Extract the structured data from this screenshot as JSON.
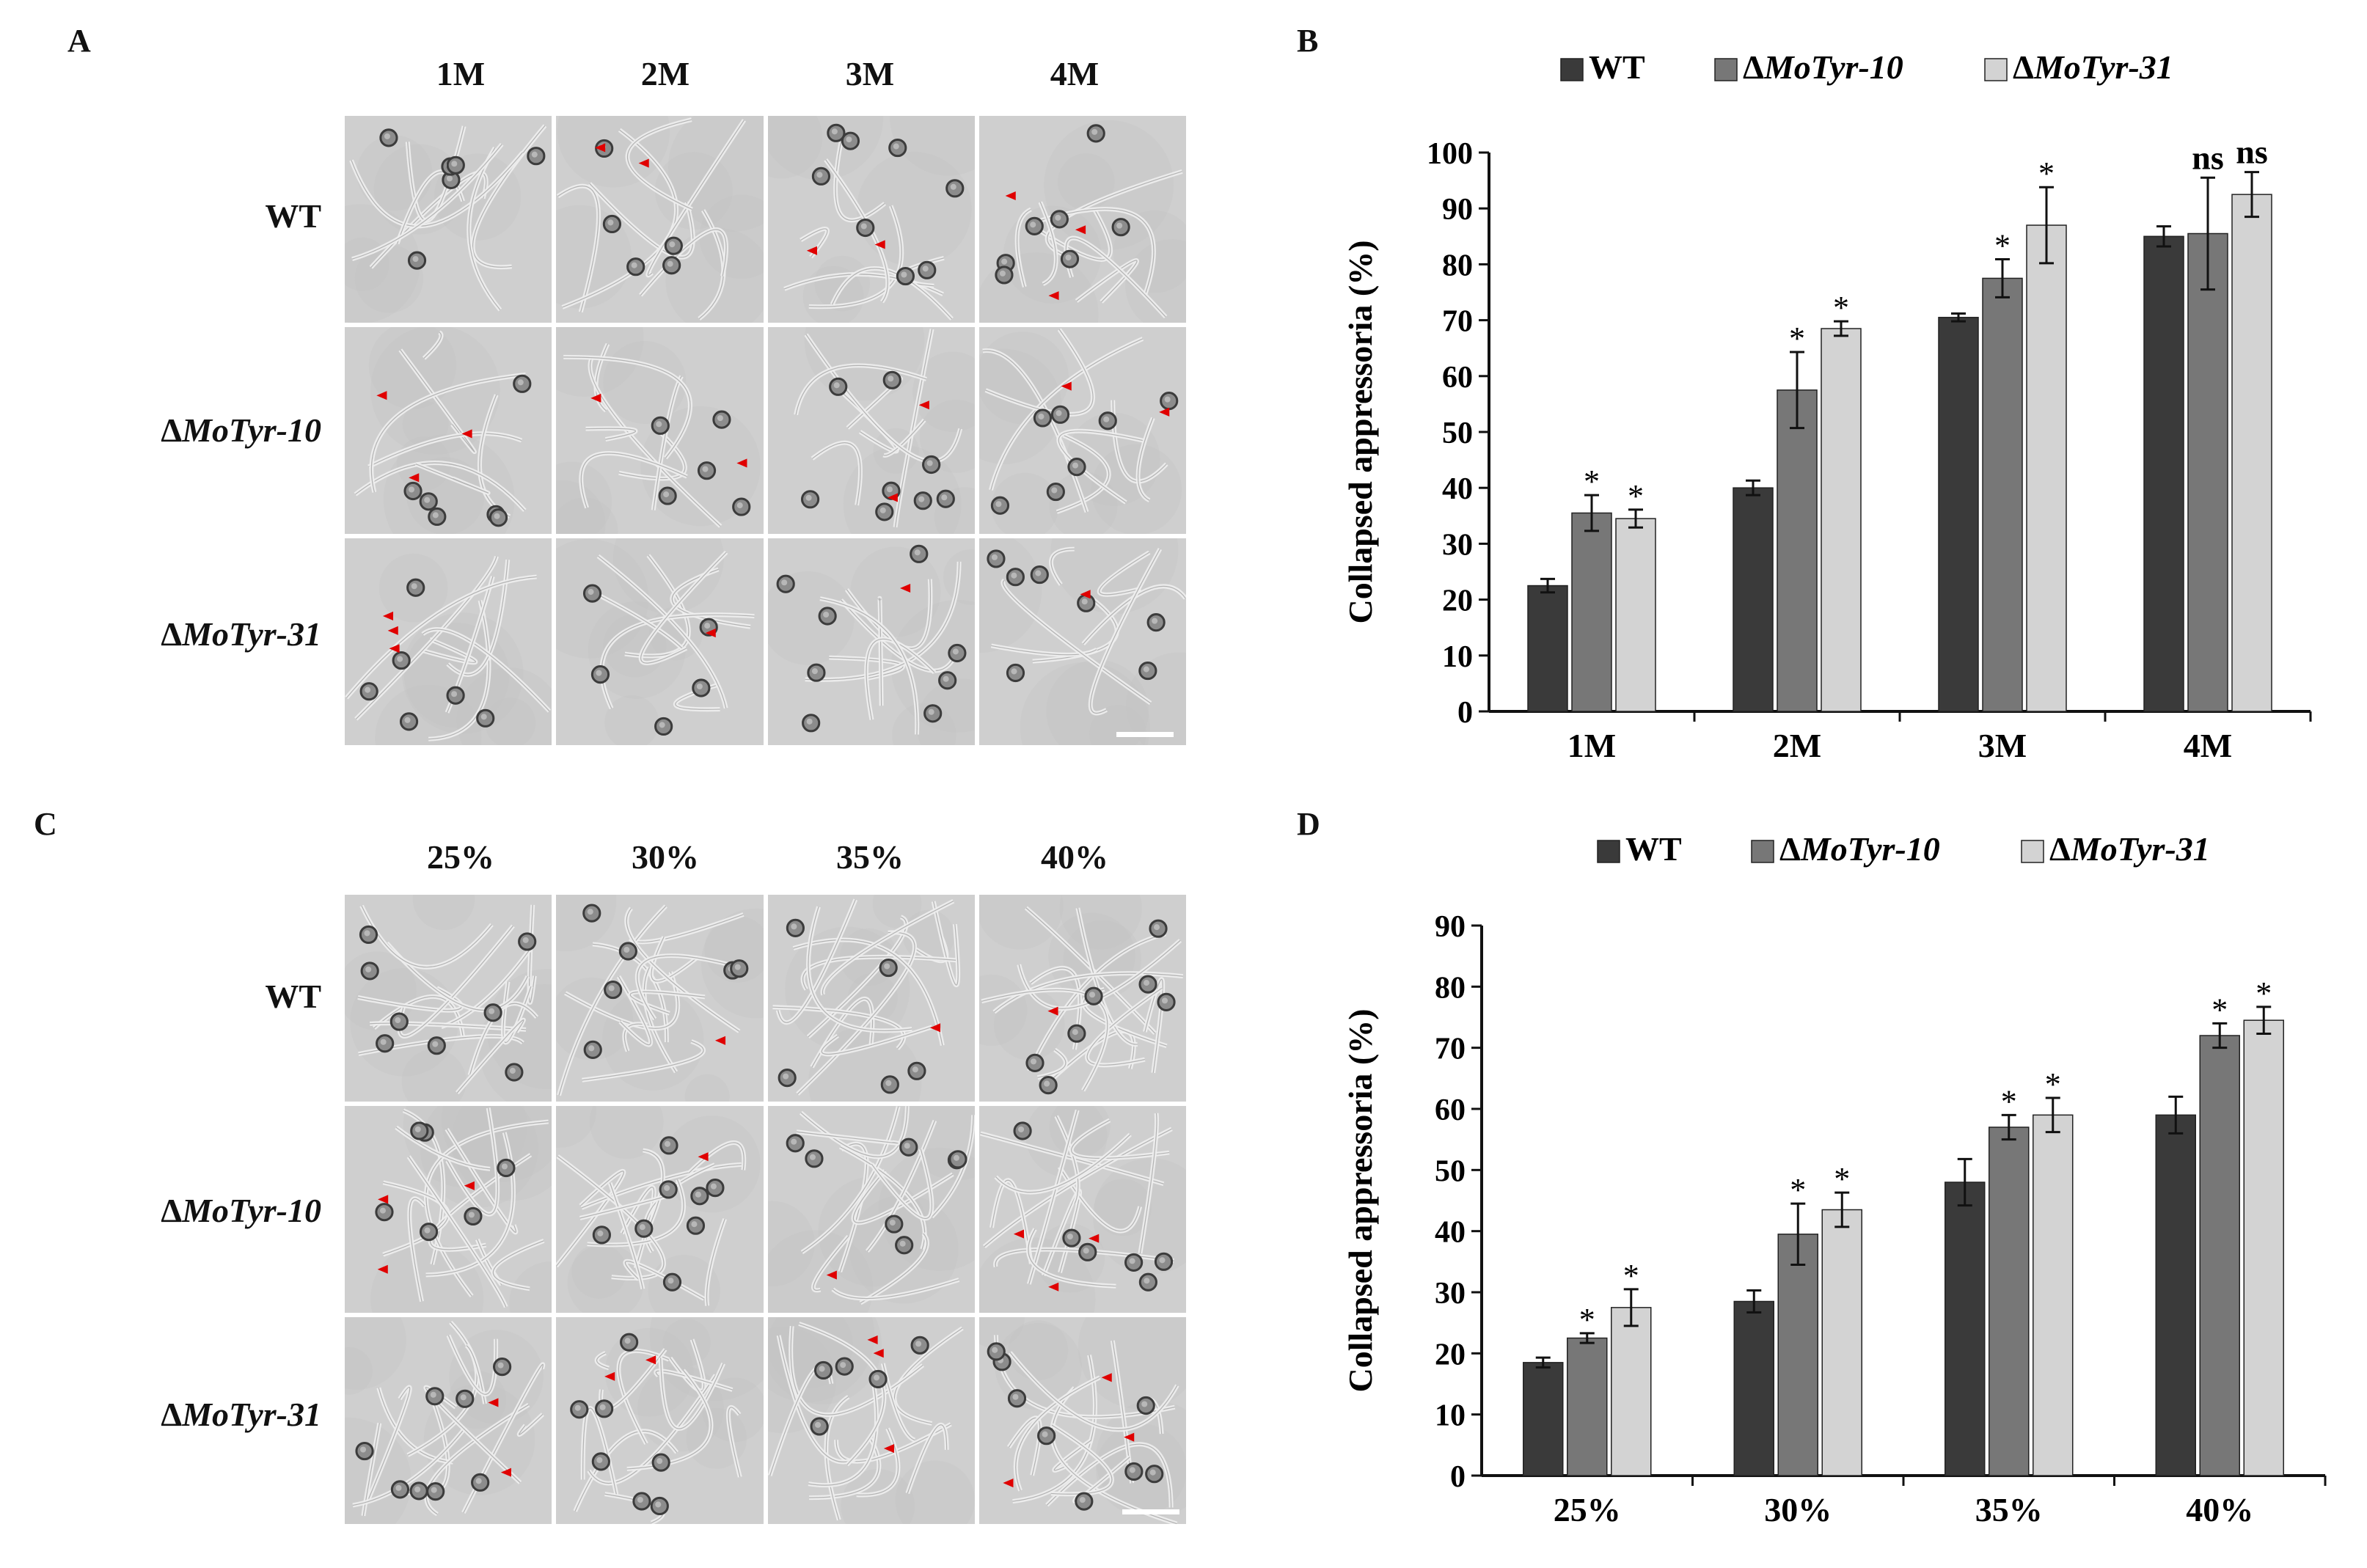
{
  "panels": {
    "A": {
      "letter": "A",
      "columns": [
        "1M",
        "2M",
        "3M",
        "4M"
      ],
      "rows": [
        {
          "prefix": "",
          "name": "WT",
          "italic": false
        },
        {
          "prefix": "Δ",
          "name": "MoTyr-10",
          "italic": true
        },
        {
          "prefix": "Δ",
          "name": "MoTyr-31",
          "italic": true
        }
      ]
    },
    "C": {
      "letter": "C",
      "columns": [
        "25%",
        "30%",
        "35%",
        "40%"
      ],
      "rows": [
        {
          "prefix": "",
          "name": "WT",
          "italic": false
        },
        {
          "prefix": "Δ",
          "name": "MoTyr-10",
          "italic": true
        },
        {
          "prefix": "Δ",
          "name": "MoTyr-31",
          "italic": true
        }
      ]
    },
    "B": {
      "letter": "B"
    },
    "D": {
      "letter": "D"
    }
  },
  "colors": {
    "wt": "#3a3a3a",
    "mutant10": "#777777",
    "mutant31": "#d3d3d3",
    "arrowhead": "#e00000",
    "tile_bg": "#cfcfcf"
  },
  "chart_data": [
    {
      "panel": "B",
      "type": "bar",
      "categories": [
        "1M",
        "2M",
        "3M",
        "4M"
      ],
      "ylabel": "Collapsed appressoria (%)",
      "ylim": [
        0,
        100
      ],
      "yticks": [
        0,
        10,
        20,
        30,
        40,
        50,
        60,
        70,
        80,
        90,
        100
      ],
      "legend_position": "top",
      "series": [
        {
          "prefix": "",
          "name": "WT",
          "italic": false,
          "values": [
            22.5,
            40,
            70.5,
            85
          ],
          "errors": [
            1.2,
            1.3,
            0.7,
            1.8
          ],
          "marks": [
            "",
            "",
            "",
            ""
          ]
        },
        {
          "prefix": "Δ",
          "name": "MoTyr-10",
          "italic": true,
          "values": [
            35.5,
            57.5,
            77.5,
            85.5
          ],
          "errors": [
            3.2,
            6.8,
            3.4,
            10
          ],
          "marks": [
            "*",
            "*",
            "*",
            "ns"
          ]
        },
        {
          "prefix": "Δ",
          "name": "MoTyr-31",
          "italic": true,
          "values": [
            34.5,
            68.5,
            87,
            92.5
          ],
          "errors": [
            1.6,
            1.3,
            6.8,
            4
          ],
          "marks": [
            "*",
            "*",
            "*",
            "ns"
          ]
        }
      ]
    },
    {
      "panel": "D",
      "type": "bar",
      "categories": [
        "25%",
        "30%",
        "35%",
        "40%"
      ],
      "ylabel": "Collapsed appressoria (%)",
      "ylim": [
        0,
        90
      ],
      "yticks": [
        0,
        10,
        20,
        30,
        40,
        50,
        60,
        70,
        80,
        90
      ],
      "legend_position": "top",
      "series": [
        {
          "prefix": "",
          "name": "WT",
          "italic": false,
          "values": [
            18.5,
            28.5,
            48,
            59
          ],
          "errors": [
            0.8,
            1.8,
            3.8,
            3
          ],
          "marks": [
            "",
            "",
            "",
            ""
          ]
        },
        {
          "prefix": "Δ",
          "name": "MoTyr-10",
          "italic": true,
          "values": [
            22.5,
            39.5,
            57,
            72
          ],
          "errors": [
            0.8,
            5,
            2,
            2
          ],
          "marks": [
            "*",
            "*",
            "*",
            "*"
          ]
        },
        {
          "prefix": "Δ",
          "name": "MoTyr-31",
          "italic": true,
          "values": [
            27.5,
            43.5,
            59,
            74.5
          ],
          "errors": [
            3,
            2.8,
            2.8,
            2.2
          ],
          "marks": [
            "*",
            "*",
            "*",
            "*"
          ]
        }
      ]
    }
  ]
}
